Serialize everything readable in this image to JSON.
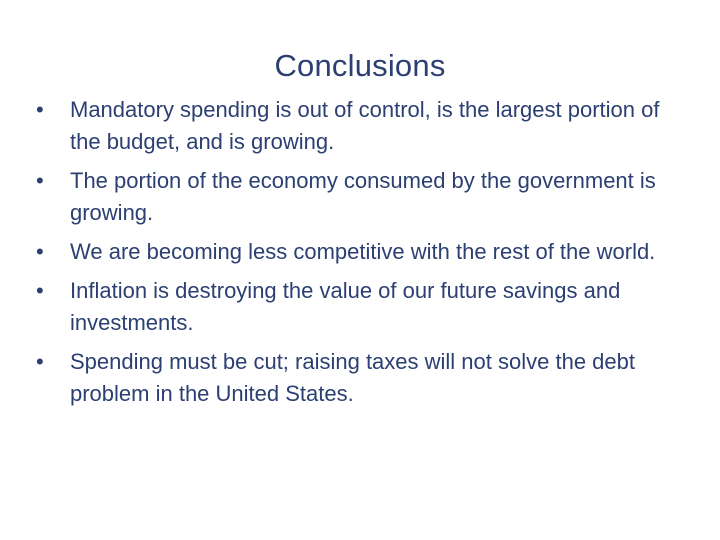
{
  "slide": {
    "title": "Conclusions",
    "bullet_marker": "•",
    "bullets": [
      "Mandatory spending is out of control, is the largest portion of the budget, and is growing.",
      "The portion of the economy consumed by the government is growing.",
      "We are becoming less competitive with the rest of the world.",
      "Inflation is destroying the value of our future savings and investments.",
      "Spending must be cut; raising taxes will not solve the debt problem in the United States."
    ],
    "colors": {
      "text": "#2b3f72",
      "background": "#ffffff"
    }
  }
}
